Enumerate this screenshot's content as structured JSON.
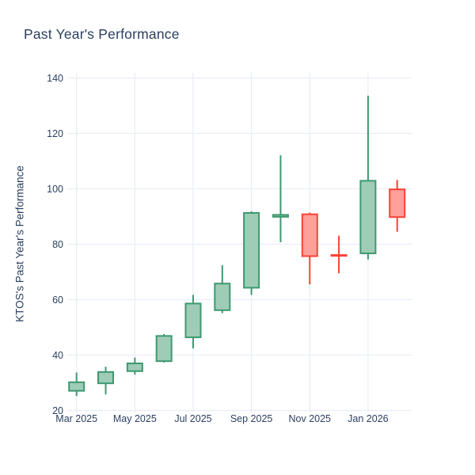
{
  "colors": {
    "background": "#ffffff",
    "text": "#2a3f5f",
    "gridline": "#e9edf5",
    "increasing_line": "#3D9970",
    "increasing_fill": "#9eccb7",
    "decreasing_line": "#FF4136",
    "decreasing_fill": "#ffa09a"
  },
  "chart_data": {
    "type": "candlestick",
    "title": "Past Year's Performance",
    "xlabel": "",
    "ylabel": "KTOS's Past Year's Performance",
    "y_ticks": [
      20,
      40,
      60,
      80,
      100,
      120,
      140
    ],
    "ylim": [
      19.3,
      141.9
    ],
    "grid": true,
    "legend": "none",
    "x_tick_labels": [
      "Mar 2025",
      "May 2025",
      "Jul 2025",
      "Sep 2025",
      "Nov 2025",
      "Jan 2026"
    ],
    "x_tick_indices": [
      0,
      2,
      4,
      6,
      8,
      10
    ],
    "candles": [
      {
        "month": "Mar 2025",
        "open": 27.1,
        "high": 33.7,
        "low": 25.2,
        "close": 30.2
      },
      {
        "month": "Apr 2025",
        "open": 29.8,
        "high": 35.8,
        "low": 25.8,
        "close": 33.9
      },
      {
        "month": "May 2025",
        "open": 34.2,
        "high": 39.1,
        "low": 32.9,
        "close": 37.0
      },
      {
        "month": "Jun 2025",
        "open": 37.8,
        "high": 47.6,
        "low": 37.3,
        "close": 46.9
      },
      {
        "month": "Jul 2025",
        "open": 46.4,
        "high": 61.7,
        "low": 42.4,
        "close": 58.6
      },
      {
        "month": "Aug 2025",
        "open": 56.2,
        "high": 72.4,
        "low": 55.1,
        "close": 65.8
      },
      {
        "month": "Sep 2025",
        "open": 64.3,
        "high": 91.9,
        "low": 61.7,
        "close": 91.3
      },
      {
        "month": "Oct 2025",
        "open": 89.9,
        "high": 112.1,
        "low": 80.7,
        "close": 90.6
      },
      {
        "month": "Nov 2025",
        "open": 90.8,
        "high": 91.4,
        "low": 65.5,
        "close": 75.7
      },
      {
        "month": "Dec 2025",
        "open": 76.1,
        "high": 83.1,
        "low": 69.5,
        "close": 75.8
      },
      {
        "month": "Jan 2026",
        "open": 76.7,
        "high": 133.6,
        "low": 74.5,
        "close": 102.9
      },
      {
        "month": "Feb 2026",
        "open": 99.8,
        "high": 103.2,
        "low": 84.5,
        "close": 89.8
      }
    ]
  }
}
